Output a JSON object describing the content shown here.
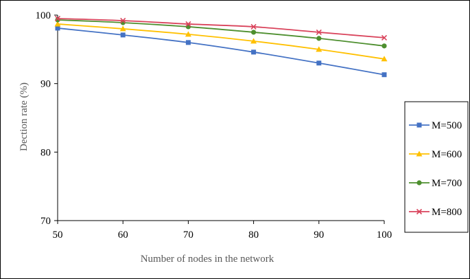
{
  "chart_data": {
    "type": "line",
    "xlabel": "Number of nodes in the network",
    "ylabel": "Dection rate (%)",
    "x": [
      50,
      60,
      70,
      80,
      90,
      100
    ],
    "xlim": [
      50,
      100
    ],
    "ylim": [
      70,
      100
    ],
    "xticks": [
      "50",
      "60",
      "70",
      "80",
      "90",
      "100"
    ],
    "yticks": [
      "70",
      "80",
      "90",
      "100"
    ],
    "grid": false,
    "legend": "right",
    "series": [
      {
        "name": "M=500",
        "values": [
          98.1,
          97.1,
          96.0,
          94.6,
          93.0,
          91.3
        ],
        "color": "#4472C4",
        "marker": "square"
      },
      {
        "name": "M=600",
        "values": [
          98.7,
          98.0,
          97.2,
          96.2,
          95.0,
          93.6
        ],
        "color": "#FFC000",
        "marker": "triangle"
      },
      {
        "name": "M=700",
        "values": [
          99.3,
          98.9,
          98.3,
          97.5,
          96.6,
          95.5
        ],
        "color": "#4E8F2F",
        "marker": "circle"
      },
      {
        "name": "M=800",
        "values": [
          99.5,
          99.2,
          98.7,
          98.3,
          97.5,
          96.7
        ],
        "color": "#D9435B",
        "marker": "x"
      }
    ]
  }
}
